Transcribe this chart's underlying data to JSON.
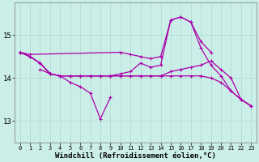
{
  "background_color": "#cceee8",
  "grid_color": "#aaddcc",
  "line_color": "#aa00aa",
  "marker": "+",
  "xlabel": "Windchill (Refroidissement éolien,°C)",
  "xlabel_fontsize": 6.5,
  "ytick_labels": [
    "13",
    "14",
    "15"
  ],
  "yticks": [
    13,
    14,
    15
  ],
  "xlim": [
    -0.5,
    23.5
  ],
  "ylim": [
    12.5,
    15.75
  ],
  "x": [
    0,
    1,
    2,
    3,
    4,
    5,
    6,
    7,
    8,
    9,
    10,
    11,
    12,
    13,
    14,
    15,
    16,
    17,
    18,
    19,
    20,
    21,
    22,
    23
  ],
  "line_top": [
    14.6,
    14.55,
    null,
    null,
    null,
    null,
    null,
    null,
    null,
    null,
    14.6,
    14.55,
    14.5,
    14.45,
    14.5,
    15.35,
    15.42,
    15.3,
    14.85,
    14.6,
    null,
    null,
    null,
    null
  ],
  "line_dip": [
    null,
    null,
    14.2,
    14.1,
    14.05,
    13.9,
    13.8,
    13.65,
    13.05,
    13.55,
    null,
    null,
    null,
    null,
    null,
    null,
    null,
    null,
    null,
    null,
    null,
    null,
    null,
    null
  ],
  "line_main": [
    14.6,
    14.5,
    14.35,
    14.1,
    14.05,
    14.05,
    14.05,
    14.05,
    14.05,
    14.05,
    14.1,
    14.15,
    14.35,
    14.25,
    14.3,
    15.35,
    15.42,
    15.3,
    14.7,
    14.3,
    14.05,
    13.7,
    13.5,
    13.35
  ],
  "line_mid": [
    14.6,
    14.5,
    14.35,
    14.1,
    14.05,
    14.05,
    14.05,
    14.05,
    14.05,
    14.05,
    14.05,
    14.05,
    14.05,
    14.05,
    14.05,
    14.15,
    14.2,
    14.25,
    14.3,
    14.4,
    14.2,
    14.0,
    13.5,
    13.35
  ],
  "line_flat": [
    14.6,
    14.5,
    14.35,
    14.1,
    14.05,
    14.05,
    14.05,
    14.05,
    14.05,
    14.05,
    14.05,
    14.05,
    14.05,
    14.05,
    14.05,
    14.05,
    14.05,
    14.05,
    14.05,
    14.0,
    13.9,
    13.7,
    13.5,
    13.35
  ]
}
